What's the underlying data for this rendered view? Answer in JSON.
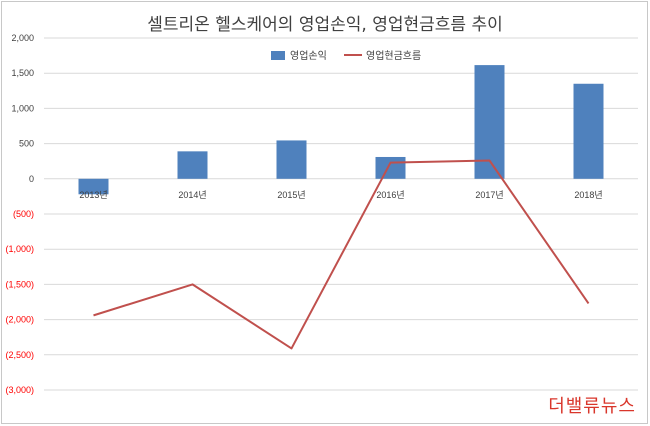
{
  "title": "셀트리온 헬스케어의 영업손익, 영업현금흐름 추이",
  "watermark": "더밸류뉴스",
  "colors": {
    "bar": "#4f81bd",
    "line": "#c0504d",
    "negative_tick": "#ff0000",
    "positive_tick": "#404040",
    "grid": "#d9d9d9"
  },
  "chart_data": {
    "type": "bar",
    "title": "셀트리온 헬스케어의 영업손익, 영업현금흐름 추이",
    "categories": [
      "2013년",
      "2014년",
      "2015년",
      "2016년",
      "2017년",
      "2018년"
    ],
    "series": [
      {
        "name": "영업손익",
        "type": "bar",
        "values": [
          -220,
          390,
          545,
          310,
          1615,
          1350
        ]
      },
      {
        "name": "영업현금흐름",
        "type": "line",
        "values": [
          -1940,
          -1500,
          -2410,
          230,
          260,
          -1770
        ]
      }
    ],
    "yticks": [
      "2,000",
      "1,500",
      "1,000",
      "500",
      "0",
      "(500)",
      "(1,000)",
      "(1,500)",
      "(2,000)",
      "(2,500)",
      "(3,000)"
    ],
    "ytick_values": [
      2000,
      1500,
      1000,
      500,
      0,
      -500,
      -1000,
      -1500,
      -2000,
      -2500,
      -3000
    ],
    "ylim": [
      -3000,
      2000
    ],
    "grid": true,
    "legend": "top-center"
  }
}
